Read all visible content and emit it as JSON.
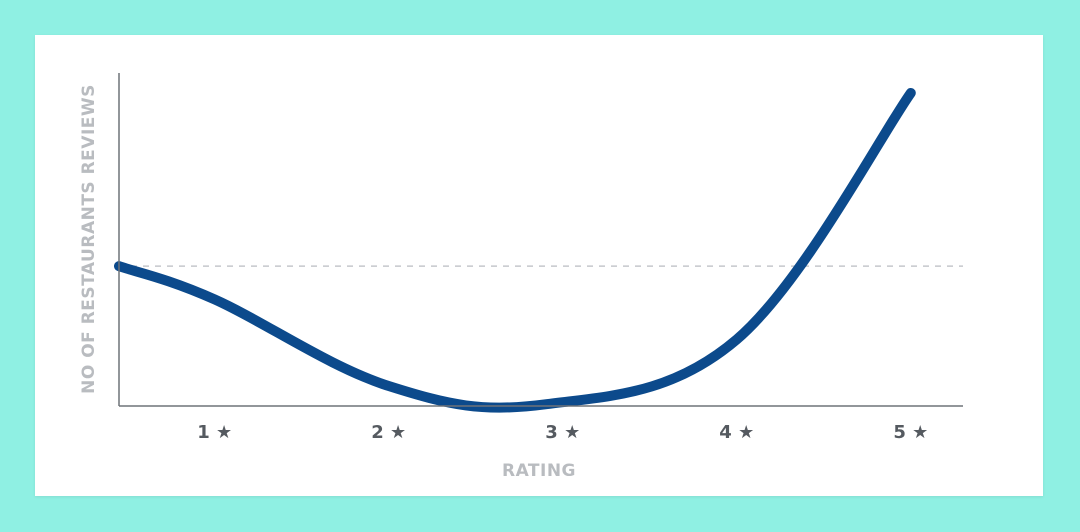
{
  "chart_data": {
    "type": "line",
    "title": "",
    "xlabel": "RATING",
    "ylabel": "NO OF RESTAURANTS REVIEWS",
    "categories": [
      "1 ★",
      "2 ★",
      "3 ★",
      "4 ★",
      "5 ★"
    ],
    "x": [
      0.45,
      1.0,
      2.0,
      2.9,
      4.0,
      5.0
    ],
    "y": [
      42,
      32,
      6,
      0.5,
      20,
      94
    ],
    "xlim": [
      0.45,
      5.3
    ],
    "ylim": [
      0,
      100
    ],
    "reference_line": {
      "y": 42,
      "style": "dashed"
    },
    "grid": false,
    "legend": "none",
    "series_color": "#0c4a8c",
    "reference_color": "#c5c8cc",
    "axis_color": "#6f7378"
  }
}
